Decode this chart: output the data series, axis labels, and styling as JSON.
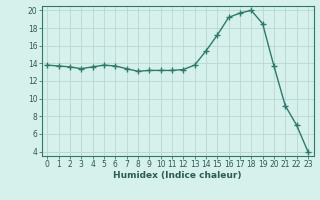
{
  "x": [
    0,
    1,
    2,
    3,
    4,
    5,
    6,
    7,
    8,
    9,
    10,
    11,
    12,
    13,
    14,
    15,
    16,
    17,
    18,
    19,
    20,
    21,
    22,
    23
  ],
  "y": [
    13.8,
    13.7,
    13.6,
    13.4,
    13.6,
    13.8,
    13.7,
    13.4,
    13.1,
    13.2,
    13.2,
    13.2,
    13.3,
    13.8,
    15.4,
    17.2,
    19.2,
    19.7,
    20.0,
    18.5,
    13.7,
    9.2,
    7.0,
    4.0
  ],
  "line_color": "#2d7a6a",
  "bg_color": "#d6f0ec",
  "grid_color": "#b8d8d4",
  "xlabel": "Humidex (Indice chaleur)",
  "ylim_min": 3.5,
  "ylim_max": 20.5,
  "xlim_min": -0.5,
  "xlim_max": 23.5,
  "yticks": [
    4,
    6,
    8,
    10,
    12,
    14,
    16,
    18,
    20
  ],
  "xticks": [
    0,
    1,
    2,
    3,
    4,
    5,
    6,
    7,
    8,
    9,
    10,
    11,
    12,
    13,
    14,
    15,
    16,
    17,
    18,
    19,
    20,
    21,
    22,
    23
  ],
  "tick_fontsize": 5.5,
  "xlabel_fontsize": 6.5,
  "tick_color": "#2d5a52"
}
